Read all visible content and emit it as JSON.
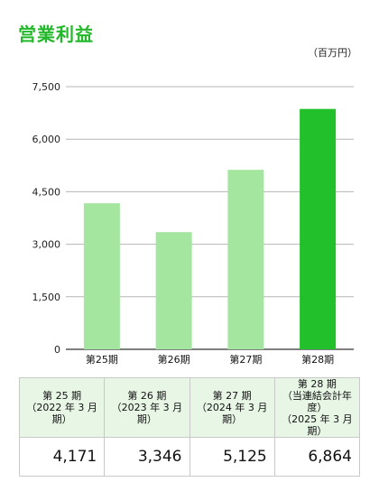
{
  "title": "営業利益",
  "unit": "（百万円）",
  "chart_data": {
    "type": "bar",
    "title": "営業利益",
    "ylabel": "",
    "ylim": [
      0,
      7500
    ],
    "yticks": [
      "0",
      "1,500",
      "3,000",
      "4,500",
      "6,000",
      "7,500"
    ],
    "ytick_values": [
      0,
      1500,
      3000,
      4500,
      6000,
      7500
    ],
    "categories": [
      "第25期",
      "第26期",
      "第27期",
      "第28期"
    ],
    "values": [
      4171,
      3346,
      5125,
      6864
    ],
    "colors": [
      "#a4e6a0",
      "#a4e6a0",
      "#a4e6a0",
      "#22c02a"
    ],
    "grid": true
  },
  "table": {
    "headers": [
      "第 25 期\n（2022 年 3 月期）",
      "第 26 期\n（2023 年 3 月期）",
      "第 27 期\n（2024 年 3 月期）",
      "第 28 期\n（当連結会計年度）\n（2025 年 3 月期）"
    ],
    "values": [
      "4,171",
      "3,346",
      "5,125",
      "6,864"
    ]
  }
}
